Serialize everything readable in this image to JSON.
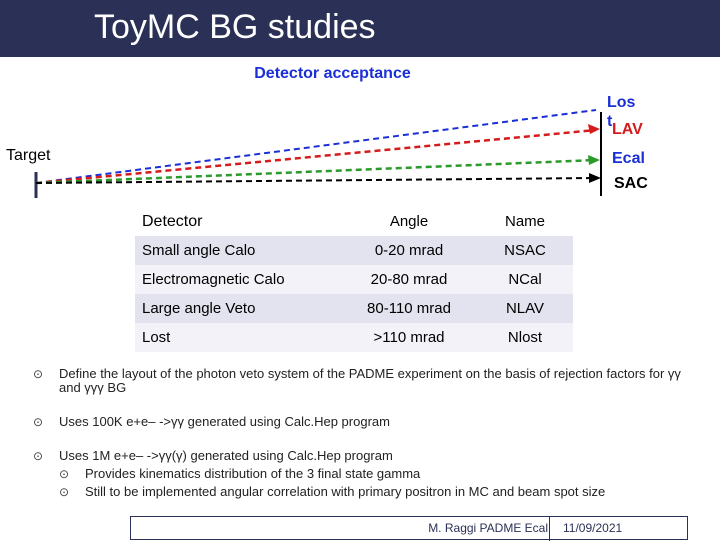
{
  "title": "ToyMC BG studies",
  "subtitle": "Detector acceptance",
  "diagram": {
    "target_label": "Target",
    "lost_label": "Los\nt",
    "lav_label": "LAV",
    "ecal_label": "Ecal",
    "sac_label": "SAC",
    "colors": {
      "lost": "#1b2fd6",
      "lav": "#d61b1b",
      "ecal": "#2a9a2a",
      "sac": "#000000"
    }
  },
  "table": {
    "headers": [
      "Detector",
      "Angle",
      "Name"
    ],
    "rows": [
      [
        "Small angle Calo",
        "0-20 mrad",
        "NSAC"
      ],
      [
        "Electromagnetic Calo",
        "20-80 mrad",
        "NCal"
      ],
      [
        "Large angle Veto",
        "80-110 mrad",
        "NLAV"
      ],
      [
        "Lost",
        ">110 mrad",
        "Nlost"
      ]
    ]
  },
  "bullets": {
    "b1": "Define the layout of the photon veto system of the PADME experiment on the basis of rejection factors for γγ and γγγ BG",
    "b2": "Uses 100K e+e– ->γγ generated using Calc.Hep program",
    "b3": "Uses 1M e+e– ->γγ(γ) generated using Calc.Hep program",
    "b3_sub1": "Provides kinematics distribution of the 3 final state gamma",
    "b3_sub2": "Still to be implemented angular correlation with primary positron in MC and beam spot size"
  },
  "footer": {
    "author": "M. Raggi PADME Ecal",
    "date": "11/09/2021"
  }
}
